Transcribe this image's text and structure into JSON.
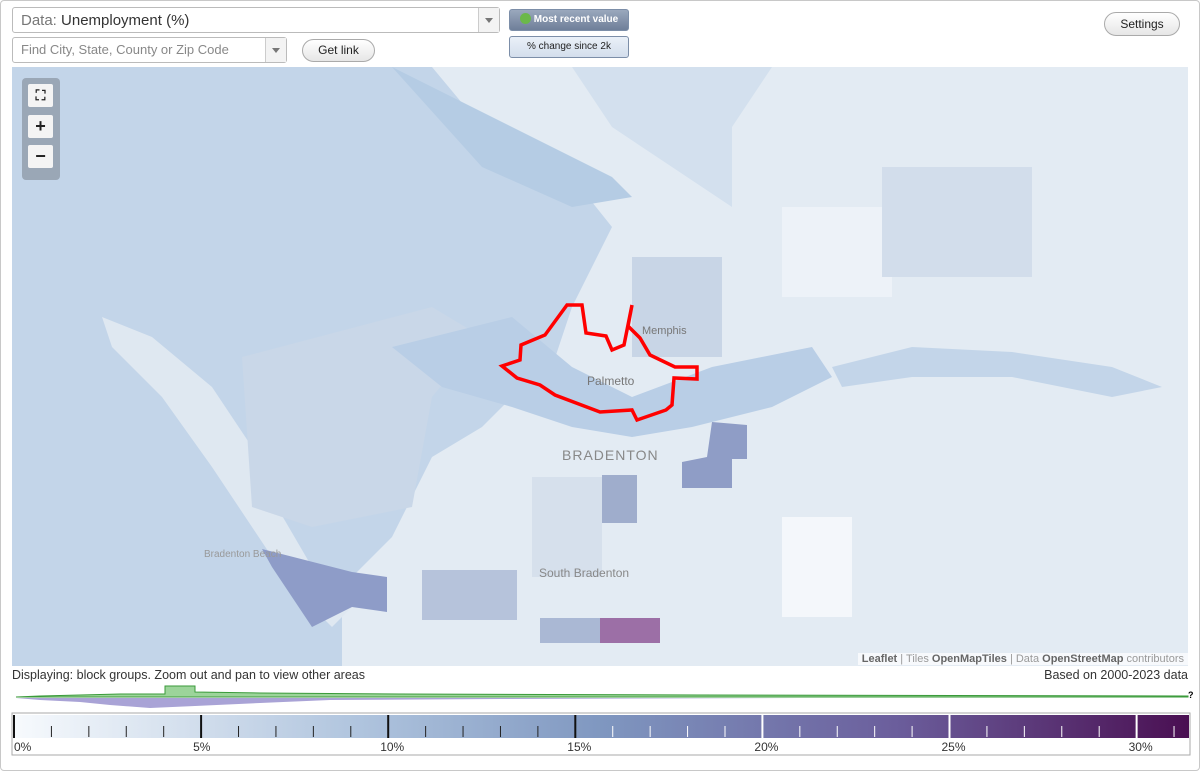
{
  "controls": {
    "data_label": "Data:",
    "data_value": "Unemployment (%)",
    "search_placeholder": "Find City, State, County or Zip Code",
    "get_link": "Get link",
    "mode_buttons": [
      "Most recent value",
      "% change since 2k"
    ],
    "settings": "Settings"
  },
  "map": {
    "labels": [
      "Memphis",
      "Palmetto",
      "BRADENTON",
      "Bradenton Beach",
      "South Bradenton"
    ],
    "attribution": [
      "Leaflet",
      "| Tiles",
      "OpenMapTiles",
      "| Data",
      "OpenStreetMap",
      "contributors"
    ]
  },
  "status": {
    "displaying": "Displaying: block groups. Zoom out and pan to view other areas",
    "based_on": "Based on 2000-2023 data",
    "help": "?"
  },
  "legend": {
    "range": [
      0,
      31.4
    ],
    "ticks": [
      {
        "value": 0,
        "label": "0%"
      },
      {
        "value": 5,
        "label": "5%"
      },
      {
        "value": 10,
        "label": "10%"
      },
      {
        "value": 15,
        "label": "15%"
      },
      {
        "value": 20,
        "label": "20%"
      },
      {
        "value": 25,
        "label": "25%"
      },
      {
        "value": 30,
        "label": "30%"
      }
    ],
    "minor_ticks": [
      1,
      2,
      3,
      4,
      6,
      7,
      8,
      9,
      11,
      12,
      13,
      14,
      16,
      17,
      18,
      19,
      21,
      22,
      23,
      24,
      26,
      27,
      28,
      29,
      31
    ]
  }
}
